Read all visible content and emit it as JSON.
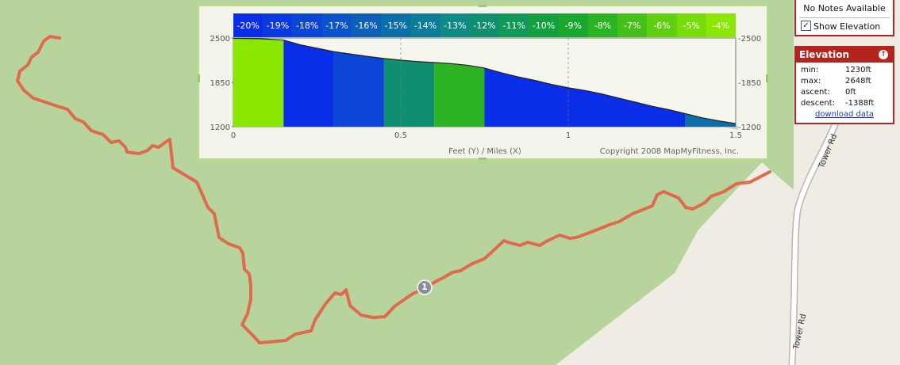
{
  "chart": {
    "grade_labels": [
      "-20%",
      "-19%",
      "-18%",
      "-17%",
      "-16%",
      "-15%",
      "-14%",
      "-13%",
      "-12%",
      "-11%",
      "-10%",
      "-9%",
      "-8%",
      "-7%",
      "-6%",
      "-5%",
      "-4%"
    ],
    "grade_colors": [
      "#0a2ee8",
      "#0a39e0",
      "#0b45d6",
      "#0c52c8",
      "#0c60b8",
      "#0c6ea8",
      "#0d7c98",
      "#0f8a86",
      "#108f70",
      "#129858",
      "#14a040",
      "#18a830",
      "#2cb324",
      "#45c01a",
      "#5fcf10",
      "#77dd08",
      "#8ae800"
    ],
    "y_left_labels": [
      "2500",
      "1850",
      "1200"
    ],
    "y_right_labels": [
      "2500",
      "1850",
      "1200"
    ],
    "x_labels": [
      "0",
      "0.5",
      "1",
      "1.5"
    ],
    "axis_caption": "Feet (Y) / Miles (X)",
    "credit": "Copyright 2008 MapMyFitness, Inc.",
    "grid_lines": true
  },
  "chart_data": {
    "type": "area",
    "title": "",
    "xlabel": "Miles",
    "ylabel": "Feet",
    "xlim": [
      0,
      1.5
    ],
    "ylim": [
      1200,
      2500
    ],
    "x": [
      0,
      0.08,
      0.15,
      0.2,
      0.3,
      0.4,
      0.45,
      0.5,
      0.55,
      0.6,
      0.65,
      0.7,
      0.75,
      0.8,
      0.85,
      0.9,
      0.95,
      1.0,
      1.05,
      1.1,
      1.15,
      1.2,
      1.25,
      1.3,
      1.35,
      1.4,
      1.45,
      1.5
    ],
    "y": [
      2495,
      2490,
      2470,
      2400,
      2300,
      2230,
      2200,
      2175,
      2155,
      2140,
      2125,
      2100,
      2060,
      1990,
      1930,
      1880,
      1820,
      1770,
      1730,
      1680,
      1620,
      1560,
      1500,
      1450,
      1390,
      1330,
      1285,
      1245
    ],
    "segments": [
      {
        "x0": 0.0,
        "x1": 0.15,
        "grade": "-4%"
      },
      {
        "x0": 0.15,
        "x1": 0.3,
        "grade": "-20%"
      },
      {
        "x0": 0.3,
        "x1": 0.45,
        "grade": "-18%"
      },
      {
        "x0": 0.45,
        "x1": 0.6,
        "grade": "-12%"
      },
      {
        "x0": 0.6,
        "x1": 0.75,
        "grade": "-8%"
      },
      {
        "x0": 0.75,
        "x1": 1.35,
        "grade": "-20%"
      },
      {
        "x0": 1.35,
        "x1": 1.5,
        "grade": "-15%"
      }
    ]
  },
  "notes": {
    "text": "No Notes Available",
    "show_elevation_label": "Show Elevation",
    "show_elevation_checked": "✓"
  },
  "elevation": {
    "title": "Elevation",
    "pin_icon": "↑",
    "rows": [
      {
        "label": "min:",
        "value": "1230ft"
      },
      {
        "label": "max:",
        "value": "2648ft"
      },
      {
        "label": "ascent:",
        "value": "0ft"
      },
      {
        "label": "descent:",
        "value": "-1388ft"
      }
    ],
    "download_label": "download data"
  },
  "map": {
    "road_name": "Tower Rd",
    "marker_label": "1",
    "route_color": "#e06a4e",
    "park_color": "#b7d49d",
    "land_color": "#efece4"
  }
}
